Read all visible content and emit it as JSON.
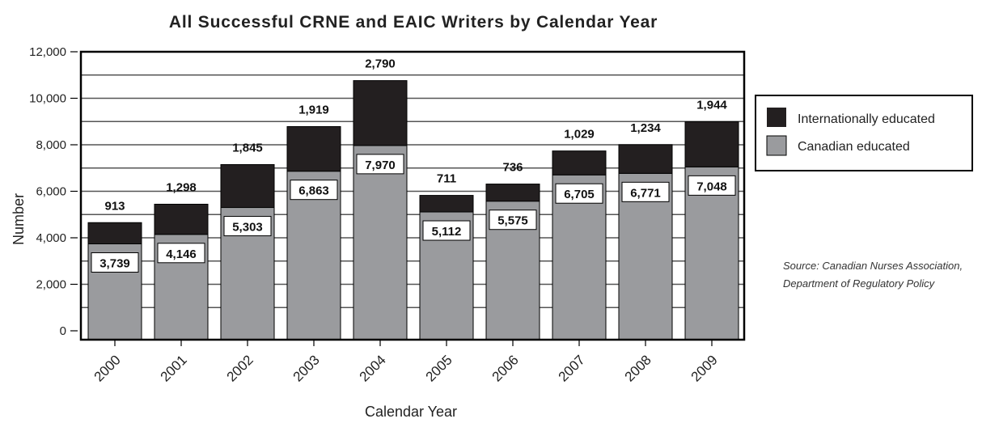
{
  "chart_data": {
    "type": "bar",
    "stacked": true,
    "title": "All Successful CRNE and EAIC Writers by Calendar Year",
    "xlabel": "Calendar Year",
    "ylabel": "Number",
    "ylim": [
      0,
      12000
    ],
    "yticks": [
      0,
      2000,
      4000,
      6000,
      8000,
      10000,
      12000
    ],
    "ytick_labels": [
      "0",
      "2,000",
      "4,000",
      "6,000",
      "8,000",
      "10,000",
      "12,000"
    ],
    "grid": true,
    "legend_position": "right",
    "categories": [
      "2000",
      "2001",
      "2002",
      "2003",
      "2004",
      "2005",
      "2006",
      "2007",
      "2008",
      "2009"
    ],
    "series": [
      {
        "name": "Canadian educated",
        "color": "#9a9b9e",
        "values": [
          3739,
          4146,
          5303,
          6863,
          7970,
          5112,
          5575,
          6705,
          6771,
          7048
        ],
        "labels": [
          "3,739",
          "4,146",
          "5,303",
          "6,863",
          "7,970",
          "5,112",
          "5,575",
          "6,705",
          "6,771",
          "7,048"
        ]
      },
      {
        "name": "Internationally educated",
        "color": "#231f20",
        "values": [
          913,
          1298,
          1845,
          1919,
          2790,
          711,
          736,
          1029,
          1234,
          1944
        ],
        "labels": [
          "913",
          "1,298",
          "1,845",
          "1,919",
          "2,790",
          "711",
          "736",
          "1,029",
          "1,234",
          "1,944"
        ]
      }
    ]
  },
  "source": {
    "line1": "Source: Canadian Nurses Association,",
    "line2": "Department of Regulatory Policy"
  }
}
